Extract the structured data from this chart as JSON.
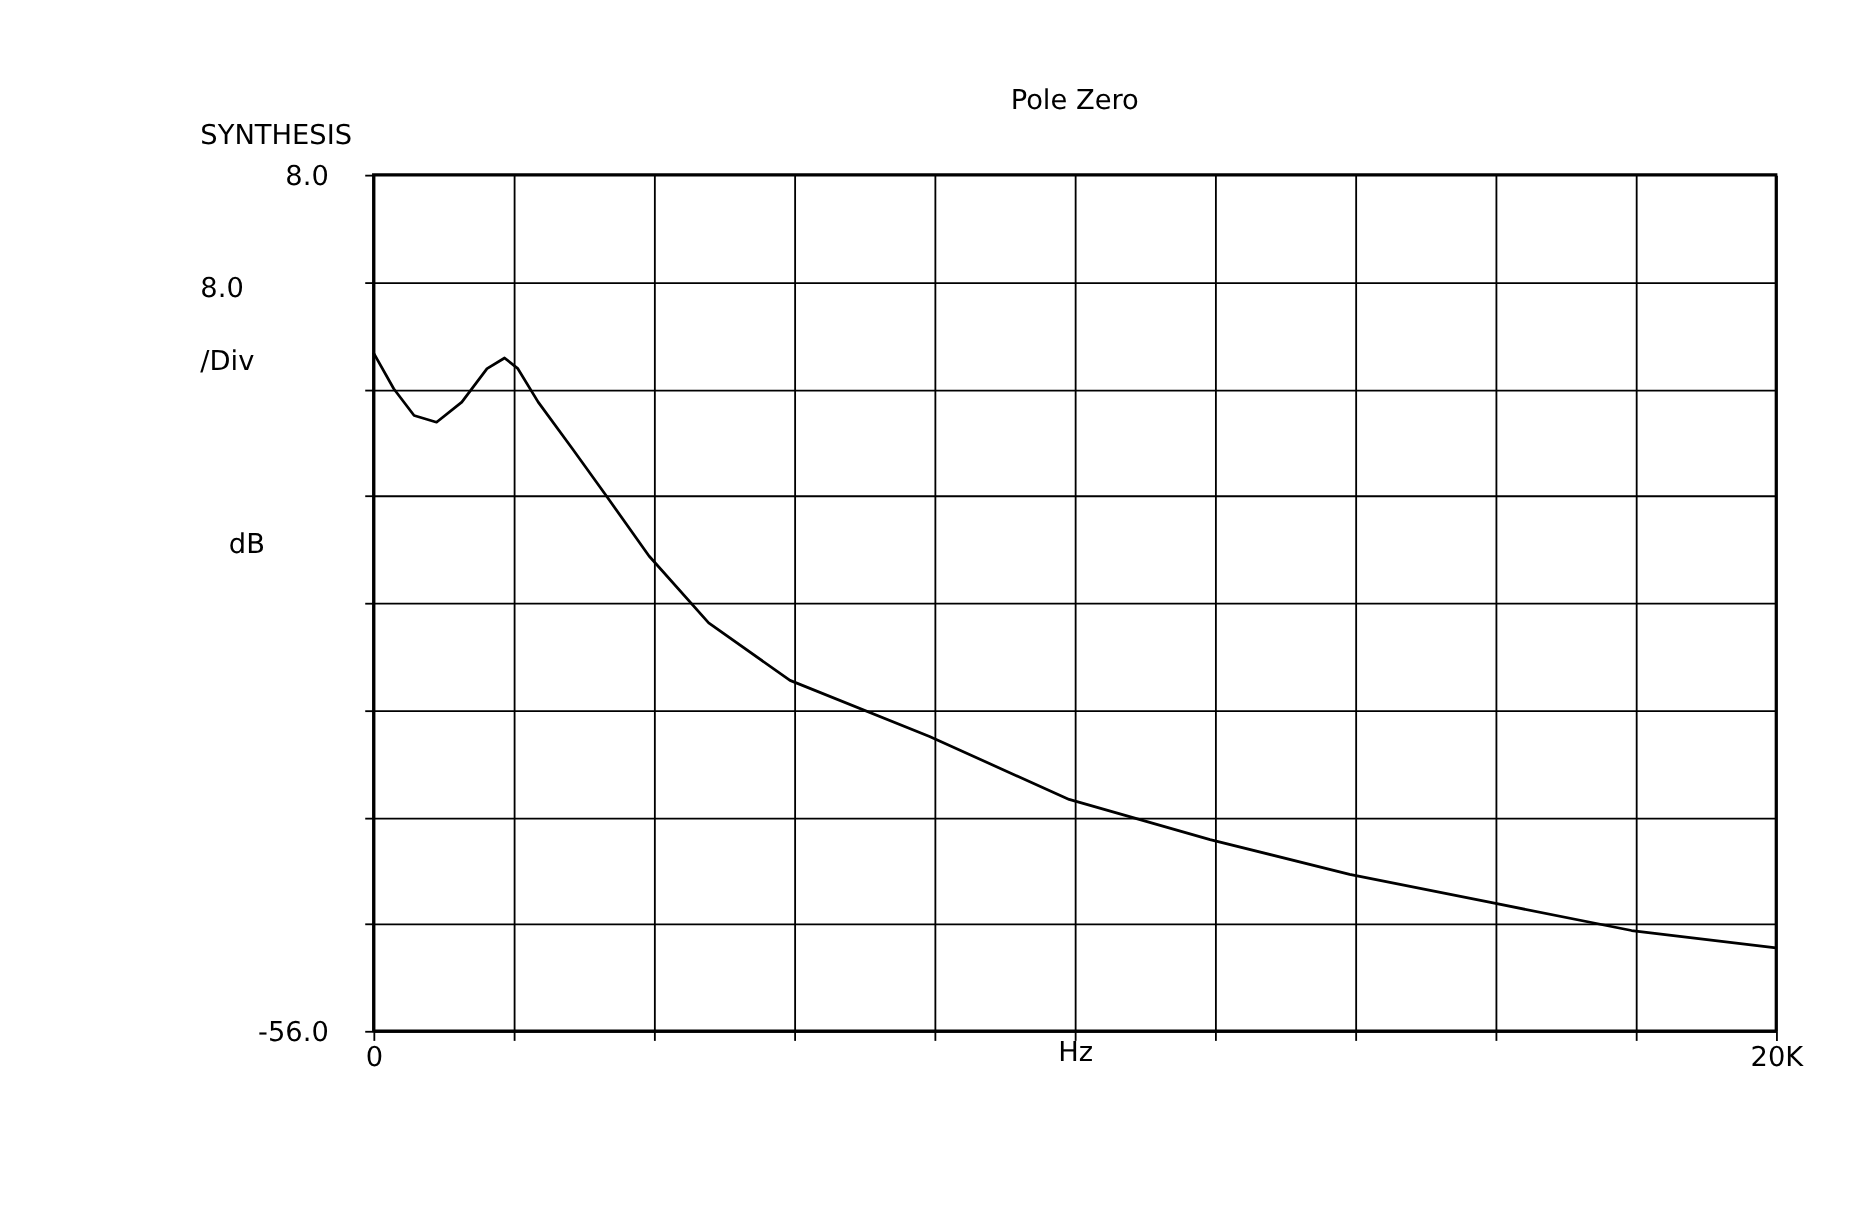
{
  "chart_data": {
    "type": "line",
    "title": "Pole Zero",
    "xlabel": "Hz",
    "ylabel": "dB",
    "annotations": [
      "SYNTHESIS",
      "8.0 /Div"
    ],
    "x": [
      0,
      290,
      580,
      900,
      1260,
      1620,
      1870,
      2060,
      2350,
      2840,
      3320,
      3930,
      4780,
      5940,
      7930,
      9920,
      11930,
      13920,
      15930,
      17940,
      20000
    ],
    "series": [
      {
        "color": "#000000",
        "values": [
          -5.3,
          -8,
          -10,
          -10.5,
          -9,
          -6.5,
          -5.7,
          -6.5,
          -9,
          -12.5,
          -16,
          -20.5,
          -25.5,
          -29.8,
          -34,
          -38.7,
          -41.7,
          -44.3,
          -46.4,
          -48.5,
          -49.8
        ]
      }
    ],
    "xlim": [
      0,
      20000
    ],
    "xticks": [
      {
        "value": 0,
        "label": "0"
      },
      {
        "value": 2000,
        "label": null
      },
      {
        "value": 4000,
        "label": null
      },
      {
        "value": 6000,
        "label": null
      },
      {
        "value": 8000,
        "label": null
      },
      {
        "value": 10000,
        "label": null
      },
      {
        "value": 12000,
        "label": null
      },
      {
        "value": 14000,
        "label": null
      },
      {
        "value": 16000,
        "label": null
      },
      {
        "value": 18000,
        "label": null
      },
      {
        "value": 20000,
        "label": "20K"
      }
    ],
    "ylim": [
      -56,
      8
    ],
    "yticks": [
      {
        "value": -56,
        "label": "-56.0"
      },
      {
        "value": -48,
        "label": null
      },
      {
        "value": -40,
        "label": null
      },
      {
        "value": -32,
        "label": null
      },
      {
        "value": -24,
        "label": null
      },
      {
        "value": -16,
        "label": null
      },
      {
        "value": -8,
        "label": null
      },
      {
        "value": 0,
        "label": null
      },
      {
        "value": 8,
        "label": "8.0"
      }
    ],
    "grid": true
  }
}
